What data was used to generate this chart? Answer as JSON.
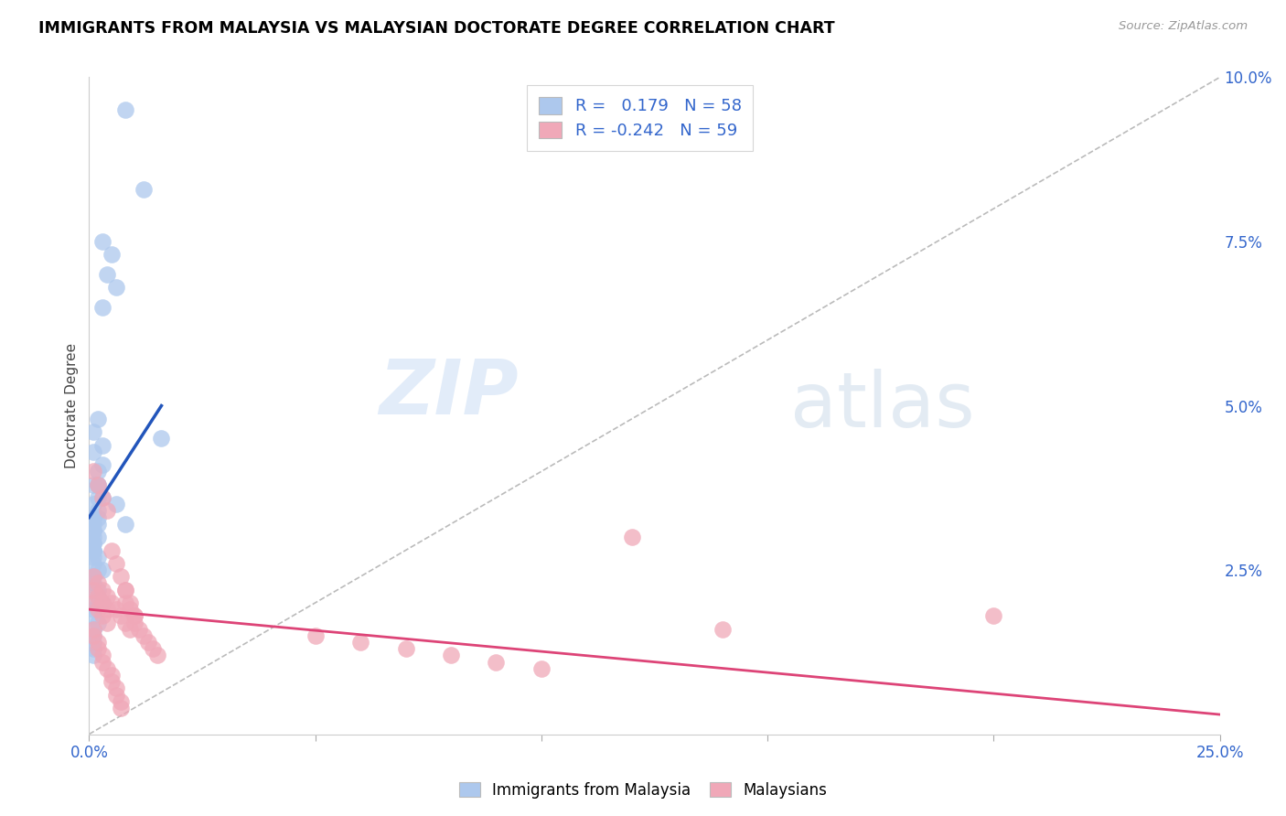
{
  "title": "IMMIGRANTS FROM MALAYSIA VS MALAYSIAN DOCTORATE DEGREE CORRELATION CHART",
  "source": "Source: ZipAtlas.com",
  "ylabel": "Doctorate Degree",
  "x_min": 0.0,
  "x_max": 0.25,
  "y_min": 0.0,
  "y_max": 0.1,
  "x_tick_positions": [
    0.0,
    0.05,
    0.1,
    0.15,
    0.2,
    0.25
  ],
  "x_tick_labels": [
    "0.0%",
    "",
    "",
    "",
    "",
    "25.0%"
  ],
  "y_ticks_right": [
    0.0,
    0.025,
    0.05,
    0.075,
    0.1
  ],
  "y_tick_labels_right": [
    "",
    "2.5%",
    "5.0%",
    "7.5%",
    "10.0%"
  ],
  "blue_color": "#adc8ed",
  "blue_line_color": "#2255bb",
  "pink_color": "#f0a8b8",
  "pink_line_color": "#dd4477",
  "dashed_line_color": "#bbbbbb",
  "R_blue": 0.179,
  "N_blue": 58,
  "R_pink": -0.242,
  "N_pink": 59,
  "watermark_zip": "ZIP",
  "watermark_atlas": "atlas",
  "blue_scatter_x": [
    0.008,
    0.012,
    0.003,
    0.005,
    0.004,
    0.006,
    0.003,
    0.002,
    0.001,
    0.003,
    0.002,
    0.002,
    0.001,
    0.003,
    0.002,
    0.001,
    0.006,
    0.008,
    0.002,
    0.001,
    0.003,
    0.001,
    0.002,
    0.002,
    0.001,
    0.001,
    0.001,
    0.002,
    0.003,
    0.002,
    0.001,
    0.001,
    0.002,
    0.003,
    0.001,
    0.001,
    0.002,
    0.001,
    0.001,
    0.001,
    0.002,
    0.001,
    0.001,
    0.001,
    0.002,
    0.001,
    0.001,
    0.016,
    0.001,
    0.001,
    0.001,
    0.002,
    0.001,
    0.001,
    0.001,
    0.001,
    0.001,
    0.001
  ],
  "blue_scatter_y": [
    0.095,
    0.083,
    0.075,
    0.073,
    0.07,
    0.068,
    0.065,
    0.048,
    0.046,
    0.044,
    0.038,
    0.036,
    0.043,
    0.041,
    0.038,
    0.035,
    0.035,
    0.032,
    0.04,
    0.038,
    0.036,
    0.033,
    0.032,
    0.03,
    0.028,
    0.026,
    0.024,
    0.022,
    0.02,
    0.033,
    0.031,
    0.029,
    0.027,
    0.025,
    0.028,
    0.027,
    0.025,
    0.024,
    0.023,
    0.022,
    0.021,
    0.02,
    0.019,
    0.018,
    0.017,
    0.016,
    0.015,
    0.045,
    0.014,
    0.013,
    0.012,
    0.034,
    0.033,
    0.032,
    0.031,
    0.03,
    0.029,
    0.028
  ],
  "pink_scatter_x": [
    0.001,
    0.001,
    0.002,
    0.002,
    0.003,
    0.003,
    0.004,
    0.004,
    0.001,
    0.001,
    0.002,
    0.002,
    0.003,
    0.003,
    0.004,
    0.005,
    0.005,
    0.006,
    0.006,
    0.007,
    0.007,
    0.008,
    0.008,
    0.009,
    0.01,
    0.01,
    0.011,
    0.012,
    0.013,
    0.014,
    0.015,
    0.001,
    0.002,
    0.003,
    0.004,
    0.005,
    0.006,
    0.007,
    0.008,
    0.009,
    0.001,
    0.002,
    0.003,
    0.004,
    0.005,
    0.006,
    0.007,
    0.008,
    0.009,
    0.01,
    0.12,
    0.14,
    0.05,
    0.06,
    0.07,
    0.08,
    0.09,
    0.1,
    0.2
  ],
  "pink_scatter_y": [
    0.022,
    0.02,
    0.021,
    0.019,
    0.02,
    0.018,
    0.019,
    0.017,
    0.016,
    0.015,
    0.014,
    0.013,
    0.012,
    0.011,
    0.01,
    0.009,
    0.008,
    0.007,
    0.006,
    0.005,
    0.004,
    0.022,
    0.02,
    0.019,
    0.018,
    0.017,
    0.016,
    0.015,
    0.014,
    0.013,
    0.012,
    0.024,
    0.023,
    0.022,
    0.021,
    0.02,
    0.019,
    0.018,
    0.017,
    0.016,
    0.04,
    0.038,
    0.036,
    0.034,
    0.028,
    0.026,
    0.024,
    0.022,
    0.02,
    0.018,
    0.03,
    0.016,
    0.015,
    0.014,
    0.013,
    0.012,
    0.011,
    0.01,
    0.018
  ],
  "blue_line_x": [
    0.0,
    0.016
  ],
  "blue_line_y": [
    0.033,
    0.05
  ],
  "pink_line_x": [
    0.0,
    0.25
  ],
  "pink_line_y": [
    0.019,
    0.003
  ],
  "dash_line_x": [
    0.0,
    0.25
  ],
  "dash_line_y": [
    0.0,
    0.1
  ]
}
